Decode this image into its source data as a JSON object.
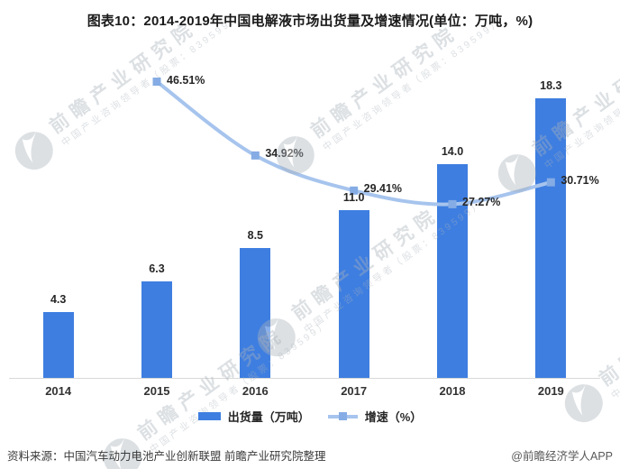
{
  "chart_data": {
    "type": "bar+line",
    "title": "图表10：2014-2019年中国电解液市场出货量及增速情况(单位：万吨，%)",
    "categories": [
      "2014",
      "2015",
      "2016",
      "2017",
      "2018",
      "2019"
    ],
    "series": [
      {
        "name": "出货量（万吨）",
        "chart_type": "bar",
        "values": [
          4.3,
          6.3,
          8.5,
          11.0,
          14.0,
          18.3
        ],
        "value_labels": [
          "4.3",
          "6.3",
          "8.5",
          "11.0",
          "14.0",
          "18.3"
        ],
        "color": "#3E7EE0",
        "axis_range": [
          0,
          20
        ]
      },
      {
        "name": "增速（%）",
        "chart_type": "line",
        "values": [
          null,
          46.51,
          34.92,
          29.41,
          27.27,
          30.71
        ],
        "value_labels": [
          null,
          "46.51%",
          "34.92%",
          "29.41%",
          "27.27%",
          "30.71%"
        ],
        "color": "#A6C4ED",
        "marker_color": "#85ACE4",
        "axis_range": [
          0,
          48
        ]
      }
    ],
    "grid": false,
    "axes_visible": false,
    "legend_position": "bottom"
  },
  "watermark": {
    "logo_name": "qianzhan-logo",
    "text": "前瞻产业研究院",
    "subtext": "中国产业咨询领导者（股票：839599）",
    "color": "#aab2bb"
  },
  "footer": {
    "source": "资料来源：中国汽车动力电池产业创新联盟 前瞻产业研究院整理",
    "credit": "@前瞻经济学人APP"
  }
}
